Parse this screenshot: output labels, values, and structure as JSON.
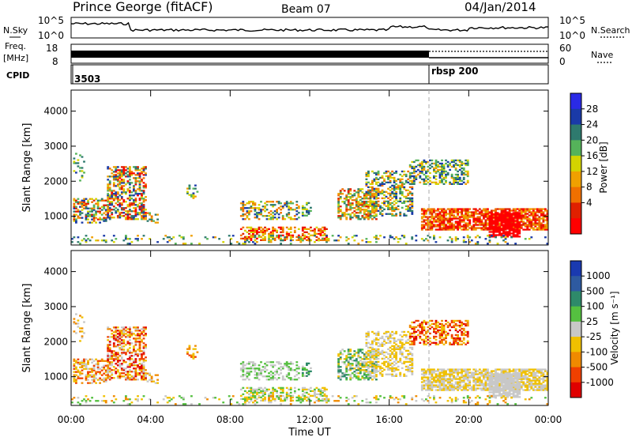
{
  "header": {
    "station": "Prince George (fitACF)",
    "beam": "Beam 07",
    "date": "04/Jan/2014"
  },
  "side_labels": {
    "nsky": "N.Sky",
    "nsearch": "N.Search",
    "freq": "Freq.",
    "freq_unit": "[MHz]",
    "nave": "Nave",
    "cpid": "CPID"
  },
  "noise_panel": {
    "left_ticks": [
      "10^5",
      "10^0"
    ],
    "right_ticks": [
      "10^5",
      "10^0"
    ]
  },
  "freq_panel": {
    "left_ticks": [
      "18",
      "8"
    ],
    "right_ticks": [
      "60",
      "0"
    ],
    "switch_time_hours": 18.0
  },
  "cpid_panel": {
    "segments": [
      {
        "label": "3503",
        "start_hours": 0.0
      },
      {
        "label": "rbsp 200",
        "start_hours": 18.0
      }
    ]
  },
  "chart_data": [
    {
      "type": "heatmap",
      "title": "Power",
      "ylabel": "Slant Range [km]",
      "xlabel": "",
      "xlim": [
        "00:00",
        "00:00"
      ],
      "ylim": [
        180,
        4600
      ],
      "y_ticks": [
        "1000",
        "2000",
        "3000",
        "4000"
      ],
      "colorbar": {
        "label": "Power [dB]",
        "ticks": [
          "28",
          "24",
          "20",
          "16",
          "12",
          "8",
          "4"
        ],
        "colors": [
          "#2a2ae6",
          "#1a3aa8",
          "#2e7a6e",
          "#55b35a",
          "#d4d400",
          "#f0a000",
          "#f07000",
          "#e02000",
          "#ff0000"
        ]
      }
    },
    {
      "type": "heatmap",
      "title": "Velocity",
      "ylabel": "Slant Range [km]",
      "xlabel": "Time UT",
      "x_ticks": [
        "00:00",
        "04:00",
        "08:00",
        "12:00",
        "16:00",
        "20:00",
        "00:00"
      ],
      "ylim": [
        180,
        4600
      ],
      "y_ticks": [
        "1000",
        "2000",
        "3000",
        "4000"
      ],
      "colorbar": {
        "label": "Velocity [m s⁻¹]",
        "ticks": [
          "1000",
          "500",
          "100",
          "25",
          "-25",
          "-100",
          "-500",
          "-1000"
        ],
        "colors": [
          "#1a3ab0",
          "#2e5aa0",
          "#2e8a6a",
          "#55c040",
          "#c8c8c8",
          "#f0c000",
          "#f08a00",
          "#f04000",
          "#e00000"
        ]
      }
    }
  ]
}
